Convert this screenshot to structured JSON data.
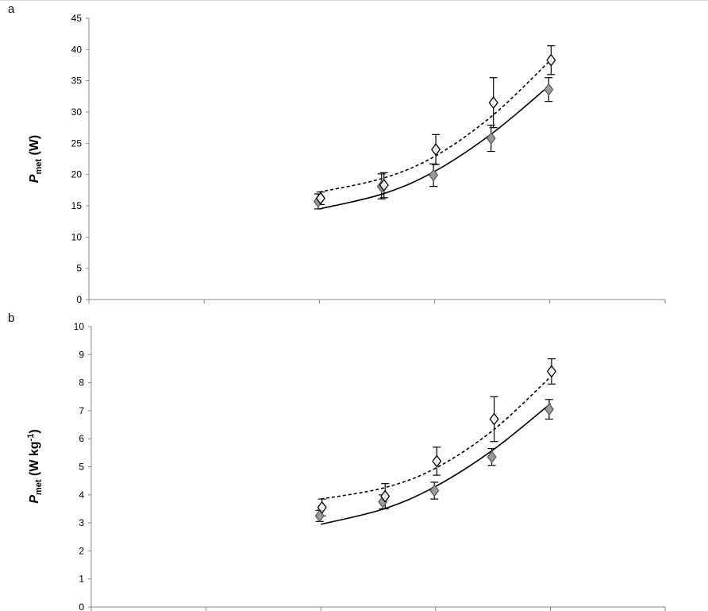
{
  "chart_data": [
    {
      "type": "scatter",
      "panel_label": "a",
      "ylabel_main": "P",
      "ylabel_sub": "met",
      "ylabel_rest": " (W)",
      "ylim": [
        0,
        45
      ],
      "yticks": [
        0,
        5,
        10,
        15,
        20,
        25,
        30,
        35,
        40,
        45
      ],
      "xlim": [
        0,
        5
      ],
      "x_tick_marks": [
        0,
        1,
        2,
        3,
        4,
        5
      ],
      "x": [
        2.0,
        2.55,
        3.0,
        3.5,
        4.0
      ],
      "series": [
        {
          "marker": "open-diamond",
          "fit_line": "dashed",
          "values": [
            16.2,
            18.3,
            24.0,
            31.5,
            38.3
          ],
          "errors": [
            1.0,
            2.0,
            2.4,
            4.0,
            2.3
          ],
          "fit": [
            17.2,
            19.4,
            22.9,
            29.4,
            38.2
          ]
        },
        {
          "marker": "filled-diamond",
          "fit_line": "solid",
          "values": [
            15.7,
            18.1,
            19.9,
            25.8,
            33.6
          ],
          "errors": [
            1.2,
            2.0,
            1.8,
            2.1,
            1.9
          ],
          "fit": [
            14.5,
            16.9,
            20.5,
            26.6,
            34.3
          ]
        }
      ],
      "grid": false,
      "legend": "none"
    },
    {
      "type": "scatter",
      "panel_label": "b",
      "ylabel_main": "P",
      "ylabel_sub": "met",
      "ylabel_rest": " (W kg",
      "ylabel_sup": "-1",
      "ylabel_end": ")",
      "ylim": [
        0,
        10
      ],
      "yticks": [
        0,
        1,
        2,
        3,
        4,
        5,
        6,
        7,
        8,
        9,
        10
      ],
      "xlim": [
        0,
        5
      ],
      "x_tick_marks": [
        0,
        1,
        2,
        3,
        4,
        5
      ],
      "x": [
        2.0,
        2.55,
        3.0,
        3.5,
        4.0
      ],
      "series": [
        {
          "marker": "open-diamond",
          "fit_line": "dashed",
          "values": [
            3.55,
            3.95,
            5.2,
            6.7,
            8.4
          ],
          "errors": [
            0.3,
            0.45,
            0.5,
            0.8,
            0.45
          ],
          "fit": [
            3.85,
            4.25,
            4.95,
            6.3,
            8.2
          ]
        },
        {
          "marker": "filled-diamond",
          "fit_line": "solid",
          "values": [
            3.25,
            3.75,
            4.15,
            5.35,
            7.05
          ],
          "errors": [
            0.2,
            0.25,
            0.3,
            0.3,
            0.35
          ],
          "fit": [
            2.95,
            3.5,
            4.3,
            5.6,
            7.25
          ]
        }
      ],
      "grid": false,
      "legend": "none"
    }
  ]
}
